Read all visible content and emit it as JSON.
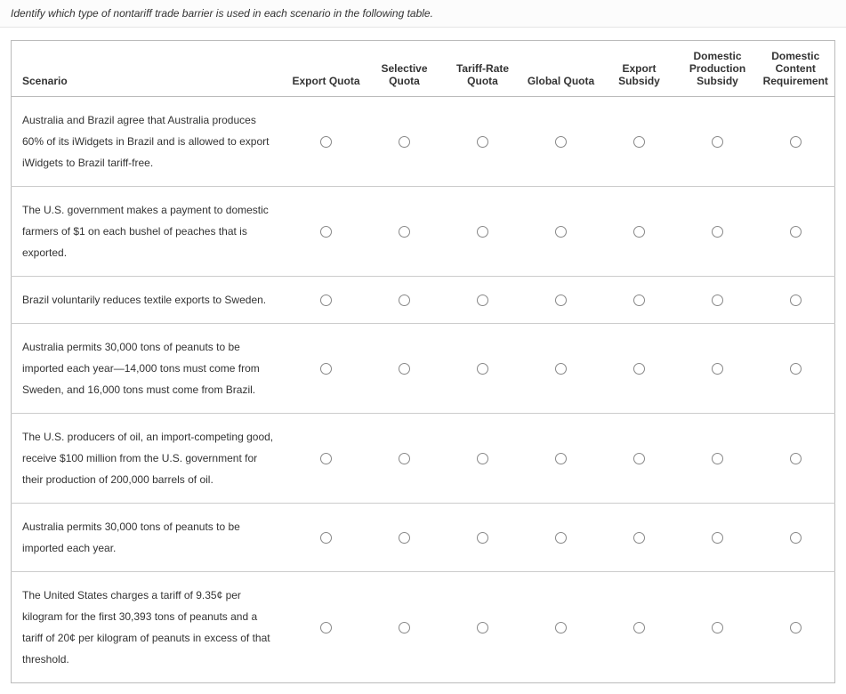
{
  "prompt": "Identify which type of nontariff trade barrier is used in each scenario in the following table.",
  "headers": {
    "scenario": "Scenario",
    "options": [
      "Export Quota",
      "Selective Quota",
      "Tariff-Rate Quota",
      "Global Quota",
      "Export Subsidy",
      "Domestic Production Subsidy",
      "Domestic Content Requirement"
    ]
  },
  "rows": [
    {
      "scenario": "Australia and Brazil agree that Australia produces 60% of its iWidgets in Brazil and is allowed to export iWidgets to Brazil tariff-free."
    },
    {
      "scenario": "The U.S. government makes a payment to domestic farmers of $1 on each bushel of peaches that is exported."
    },
    {
      "scenario": "Brazil voluntarily reduces textile exports to Sweden."
    },
    {
      "scenario": "Australia permits 30,000 tons of peanuts to be imported each year—14,000 tons must come from Sweden, and 16,000 tons must come from Brazil."
    },
    {
      "scenario": "The U.S. producers of oil, an import-competing good, receive $100 million from the U.S. government for their production of 200,000 barrels of oil."
    },
    {
      "scenario": "Australia permits 30,000 tons of peanuts to be imported each year."
    },
    {
      "scenario": "The United States charges a tariff of 9.35¢ per kilogram for the first 30,393 tons of peanuts and a tariff of 20¢ per kilogram of peanuts in excess of that threshold."
    }
  ]
}
